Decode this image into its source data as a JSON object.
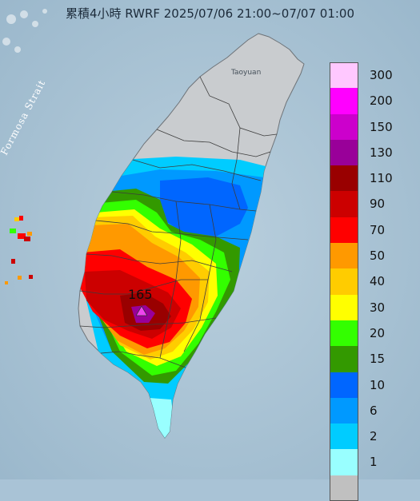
{
  "title": "累積4小時 RWRF 2025/07/06 21:00~07/07 01:00",
  "labels": {
    "strait": "Formosa Strait",
    "city": "Taoyuan",
    "peak_value": "165"
  },
  "legend": [
    {
      "label": "300",
      "color": "#ffc8ff"
    },
    {
      "label": "200",
      "color": "#ff00ff"
    },
    {
      "label": "150",
      "color": "#cc00cc"
    },
    {
      "label": "130",
      "color": "#990099"
    },
    {
      "label": "110",
      "color": "#990000"
    },
    {
      "label": "90",
      "color": "#cc0000"
    },
    {
      "label": "70",
      "color": "#ff0000"
    },
    {
      "label": "50",
      "color": "#ff9900"
    },
    {
      "label": "40",
      "color": "#ffcc00"
    },
    {
      "label": "30",
      "color": "#ffff00"
    },
    {
      "label": "20",
      "color": "#33ff00"
    },
    {
      "label": "15",
      "color": "#339900"
    },
    {
      "label": "10",
      "color": "#0066ff"
    },
    {
      "label": "6",
      "color": "#0099ff"
    },
    {
      "label": "2",
      "color": "#00ccff"
    },
    {
      "label": "1",
      "color": "#99ffff"
    },
    {
      "label": "",
      "color": "#c0c0c0"
    }
  ],
  "colors": {
    "sea": "#a9c3d6",
    "no_rain": "#c9cccf"
  },
  "icons": {
    "peak_marker": "triangle-marker-icon"
  }
}
